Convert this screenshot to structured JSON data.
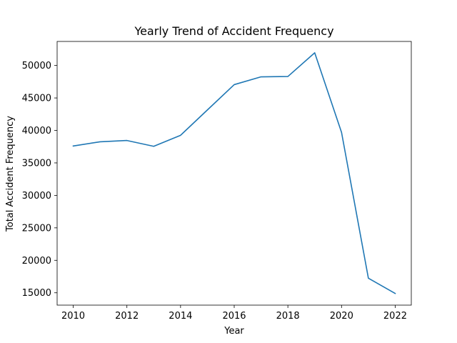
{
  "chart_data": {
    "type": "line",
    "title": "Yearly Trend of Accident Frequency",
    "xlabel": "Year",
    "ylabel": "Total Accident Frequency",
    "xlim": [
      2009.4,
      2022.6
    ],
    "ylim": [
      13100,
      53700
    ],
    "xticks": [
      2010,
      2012,
      2014,
      2016,
      2018,
      2020,
      2022
    ],
    "yticks": [
      15000,
      20000,
      25000,
      30000,
      35000,
      40000,
      45000,
      50000
    ],
    "grid": false,
    "color": "#1f77b4",
    "x": [
      2010,
      2011,
      2012,
      2013,
      2014,
      2015,
      2016,
      2017,
      2018,
      2019,
      2020,
      2021,
      2022
    ],
    "y": [
      37600,
      38250,
      38450,
      37550,
      39250,
      43150,
      47050,
      48250,
      48300,
      51950,
      39700,
      17250,
      14900
    ]
  }
}
